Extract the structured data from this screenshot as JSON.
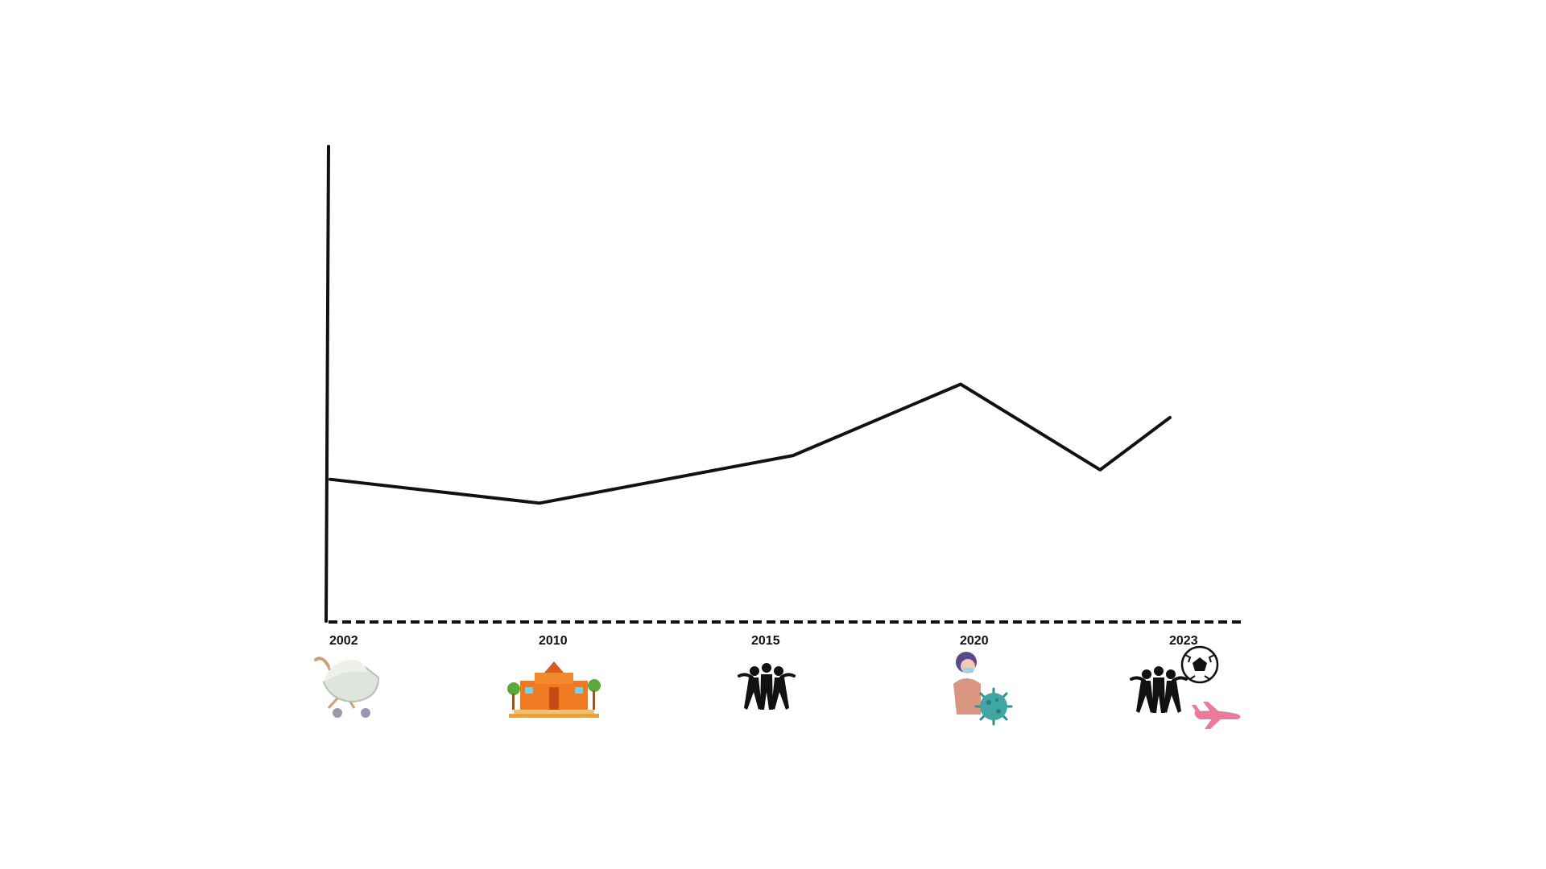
{
  "chart_data": {
    "type": "line",
    "title": "",
    "xlabel": "",
    "ylabel": "",
    "x_ticks": [
      "2002",
      "2010",
      "2015",
      "2020",
      "2023"
    ],
    "y_axis": {
      "ticks": [],
      "range": [
        0,
        10
      ]
    },
    "grid": false,
    "legend": "none",
    "series": [
      {
        "x": [
          2002,
          2010,
          2016,
          2020,
          2022,
          2023
        ],
        "y": [
          3.0,
          2.5,
          3.5,
          5.0,
          3.2,
          4.3
        ]
      }
    ],
    "line_color": "#111111",
    "x_axis_style": "dashed"
  },
  "milestone_icons": [
    {
      "year": "2002",
      "icons": [
        "baby-pram-icon"
      ]
    },
    {
      "year": "2010",
      "icons": [
        "school-building-icon"
      ]
    },
    {
      "year": "2015",
      "icons": [
        "friends-group-icon"
      ]
    },
    {
      "year": "2020",
      "icons": [
        "masked-person-icon",
        "virus-icon"
      ]
    },
    {
      "year": "2023",
      "icons": [
        "friends-group-icon",
        "soccer-ball-icon",
        "airplane-icon"
      ]
    }
  ]
}
